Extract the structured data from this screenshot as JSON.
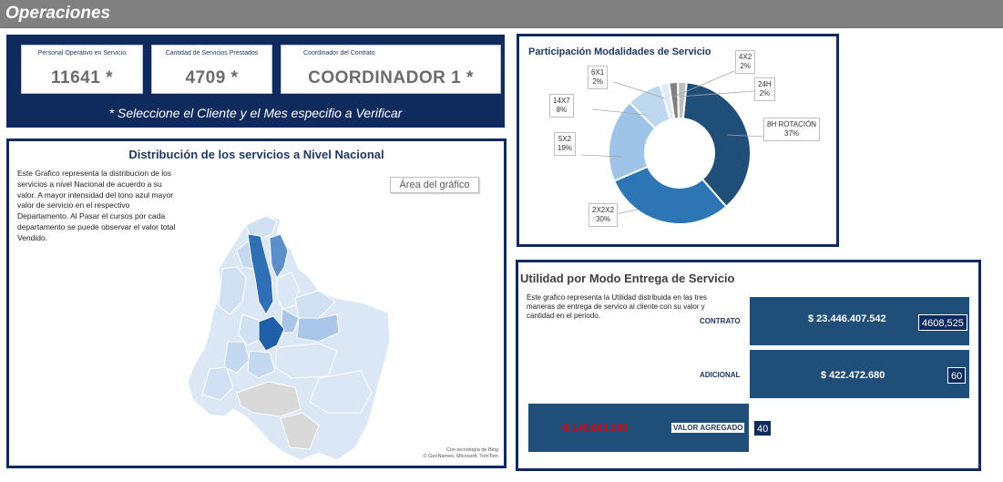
{
  "header": {
    "title": "Operaciones"
  },
  "kpis": {
    "personal": {
      "label": "Personal Operativo en Servicio",
      "value": "11641 *"
    },
    "servicios": {
      "label": "Cantidad de Servicios Prestados",
      "value": "4709 *"
    },
    "coordinador": {
      "label": "Coordinador del Contrato",
      "value": "COORDINADOR 1 *"
    },
    "note": "* Seleccione el Cliente y el Mes especifio a Verificar"
  },
  "map": {
    "title": "Distribución de los servicios a Nivel Nacional",
    "description": "Este Grafico representa la distribucion de los servicios a nivel Nacional de acuerdo a su valor. A mayor intensidad del tono azul mayor valor de servicio en el respectivo Departamento. Al Pasar el cursos por cada departamento se puede observar el valor total Vendido.",
    "area_label": "Área del gráfico",
    "attribution_1": "Con tecnología de Bing",
    "attribution_2": "© GeoNames, Microsoft, TomTom",
    "colors": {
      "light": "#dbe7f5",
      "mid": "#a9c6e8",
      "strong": "#5b8fc9",
      "dark": "#2e6fb5",
      "gray": "#d9d9d9"
    }
  },
  "donut": {
    "title": "Participación Modalidades de Servicio",
    "segments": [
      {
        "name": "8H ROTACIÓN",
        "pct": "37%",
        "value": 37,
        "color": "#1f4e79"
      },
      {
        "name": "2X2X2",
        "pct": "30%",
        "value": 30,
        "color": "#2e75b6"
      },
      {
        "name": "5X2",
        "pct": "19%",
        "value": 19,
        "color": "#9dc3e6"
      },
      {
        "name": "14X7",
        "pct": "8%",
        "value": 8,
        "color": "#bdd7ee"
      },
      {
        "name": "6X1",
        "pct": "2%",
        "value": 2,
        "color": "#deebf7"
      },
      {
        "name": "4X2",
        "pct": "2%",
        "value": 2,
        "color": "#808080"
      },
      {
        "name": "24H",
        "pct": "2%",
        "value": 2,
        "color": "#bfbfbf"
      }
    ]
  },
  "utilidad": {
    "title": "Utilidad por Modo Entrega de Servicio",
    "description": "Este grafico representa la Utilidad distribuida en las tres maneras de entrega de servico al cliente con su valor y cantidad en el periodo.",
    "rows": [
      {
        "category": "CONTRATO",
        "value": "$ 23.446.407.542",
        "count": "4608,525"
      },
      {
        "category": "ADICIONAL",
        "value": "$ 422.472.680",
        "count": "60"
      },
      {
        "category": "VALOR AGREGADO",
        "value": "-$ 149.800.000",
        "count": "40"
      }
    ]
  }
}
